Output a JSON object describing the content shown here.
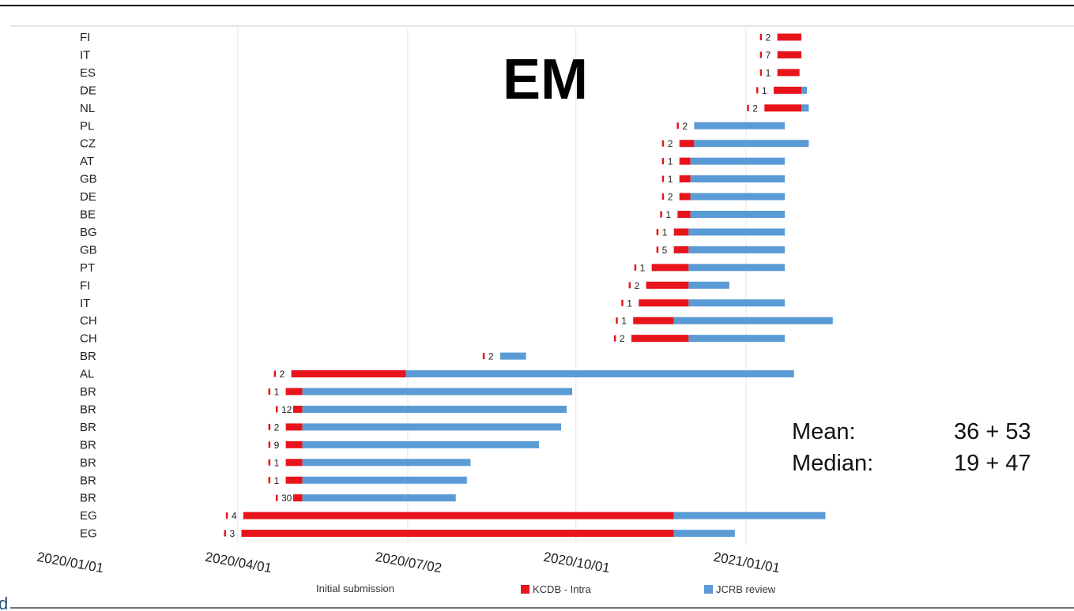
{
  "chart_data": {
    "type": "bar",
    "stacked": true,
    "orientation": "horizontal",
    "title": "EM",
    "x_axis": {
      "type": "date",
      "ticks": [
        "2020/01/01",
        "2020/04/01",
        "2020/07/02",
        "2020/10/01",
        "2021/01/01"
      ],
      "range": [
        "2020-01-01",
        "2021-03-31"
      ]
    },
    "categories": [
      "FI",
      "IT",
      "ES",
      "DE",
      "NL",
      "PL",
      "CZ",
      "AT",
      "GB",
      "DE",
      "BE",
      "BG",
      "GB",
      "PT",
      "FI",
      "IT",
      "CH",
      "CH",
      "BR",
      "AL",
      "BR",
      "BR",
      "BR",
      "BR",
      "BR",
      "BR",
      "BR",
      "EG",
      "EG"
    ],
    "entries": [
      {
        "country": "FI",
        "submitted": "2021-01-18",
        "kcdb_end": "2021-01-31",
        "jcrb_end": "2021-01-31",
        "label": "2"
      },
      {
        "country": "IT",
        "submitted": "2021-01-18",
        "kcdb_end": "2021-01-31",
        "jcrb_end": "2021-01-31",
        "label": "7"
      },
      {
        "country": "ES",
        "submitted": "2021-01-18",
        "kcdb_end": "2021-01-30",
        "jcrb_end": "2021-01-30",
        "label": "1"
      },
      {
        "country": "DE",
        "submitted": "2021-01-16",
        "kcdb_end": "2021-01-31",
        "jcrb_end": "2021-02-03",
        "label": "1"
      },
      {
        "country": "NL",
        "submitted": "2021-01-11",
        "kcdb_end": "2021-01-31",
        "jcrb_end": "2021-02-04",
        "label": "2"
      },
      {
        "country": "PL",
        "submitted": "2020-12-04",
        "kcdb_end": "2020-12-04",
        "jcrb_end": "2021-01-22",
        "label": "2"
      },
      {
        "country": "CZ",
        "submitted": "2020-11-26",
        "kcdb_end": "2020-12-04",
        "jcrb_end": "2021-02-04",
        "label": "2"
      },
      {
        "country": "AT",
        "submitted": "2020-11-26",
        "kcdb_end": "2020-12-02",
        "jcrb_end": "2021-01-22",
        "label": "1"
      },
      {
        "country": "GB",
        "submitted": "2020-11-26",
        "kcdb_end": "2020-12-02",
        "jcrb_end": "2021-01-22",
        "label": "1"
      },
      {
        "country": "DE",
        "submitted": "2020-11-26",
        "kcdb_end": "2020-12-02",
        "jcrb_end": "2021-01-22",
        "label": "2"
      },
      {
        "country": "BE",
        "submitted": "2020-11-25",
        "kcdb_end": "2020-12-02",
        "jcrb_end": "2021-01-22",
        "label": "1"
      },
      {
        "country": "BG",
        "submitted": "2020-11-23",
        "kcdb_end": "2020-12-01",
        "jcrb_end": "2021-01-22",
        "label": "1"
      },
      {
        "country": "GB",
        "submitted": "2020-11-23",
        "kcdb_end": "2020-12-01",
        "jcrb_end": "2021-01-22",
        "label": "5"
      },
      {
        "country": "PT",
        "submitted": "2020-11-11",
        "kcdb_end": "2020-12-01",
        "jcrb_end": "2021-01-22",
        "label": "1"
      },
      {
        "country": "FI",
        "submitted": "2020-11-08",
        "kcdb_end": "2020-12-01",
        "jcrb_end": "2020-12-23",
        "label": "2"
      },
      {
        "country": "IT",
        "submitted": "2020-11-04",
        "kcdb_end": "2020-12-01",
        "jcrb_end": "2021-01-22",
        "label": "1"
      },
      {
        "country": "CH",
        "submitted": "2020-11-01",
        "kcdb_end": "2020-11-23",
        "jcrb_end": "2021-02-17",
        "label": "1"
      },
      {
        "country": "CH",
        "submitted": "2020-10-31",
        "kcdb_end": "2020-12-01",
        "jcrb_end": "2021-01-22",
        "label": "2"
      },
      {
        "country": "BR",
        "submitted": "2020-08-21",
        "kcdb_end": "2020-08-21",
        "jcrb_end": "2020-09-04",
        "label": "2"
      },
      {
        "country": "AL",
        "submitted": "2020-04-30",
        "kcdb_end": "2020-07-01",
        "jcrb_end": "2021-01-27",
        "label": "2"
      },
      {
        "country": "BR",
        "submitted": "2020-04-27",
        "kcdb_end": "2020-05-06",
        "jcrb_end": "2020-09-29",
        "label": "1"
      },
      {
        "country": "BR",
        "submitted": "2020-05-01",
        "kcdb_end": "2020-05-06",
        "jcrb_end": "2020-09-26",
        "label": "12"
      },
      {
        "country": "BR",
        "submitted": "2020-04-27",
        "kcdb_end": "2020-05-06",
        "jcrb_end": "2020-09-23",
        "label": "2"
      },
      {
        "country": "BR",
        "submitted": "2020-04-27",
        "kcdb_end": "2020-05-06",
        "jcrb_end": "2020-09-11",
        "label": "9"
      },
      {
        "country": "BR",
        "submitted": "2020-04-27",
        "kcdb_end": "2020-05-06",
        "jcrb_end": "2020-08-05",
        "label": "1"
      },
      {
        "country": "BR",
        "submitted": "2020-04-27",
        "kcdb_end": "2020-05-06",
        "jcrb_end": "2020-08-03",
        "label": "1"
      },
      {
        "country": "BR",
        "submitted": "2020-05-01",
        "kcdb_end": "2020-05-06",
        "jcrb_end": "2020-07-28",
        "label": "30"
      },
      {
        "country": "EG",
        "submitted": "2020-04-04",
        "kcdb_end": "2020-11-23",
        "jcrb_end": "2021-02-13",
        "label": "4"
      },
      {
        "country": "EG",
        "submitted": "2020-04-03",
        "kcdb_end": "2020-11-23",
        "jcrb_end": "2020-12-26",
        "label": "3"
      }
    ],
    "series": [
      {
        "name": "Initial submission",
        "color": "#ffffff"
      },
      {
        "name": "KCDB - Intra",
        "color": "#e8141b"
      },
      {
        "name": "JCRB review",
        "color": "#5b9bd5"
      }
    ],
    "annotations": [
      {
        "label": "Mean:",
        "value": "36 + 53"
      },
      {
        "label": "Median:",
        "value": "19 + 47"
      }
    ],
    "grid": "vertical",
    "legend": "bottom"
  },
  "page": {
    "corner_text": "d"
  }
}
